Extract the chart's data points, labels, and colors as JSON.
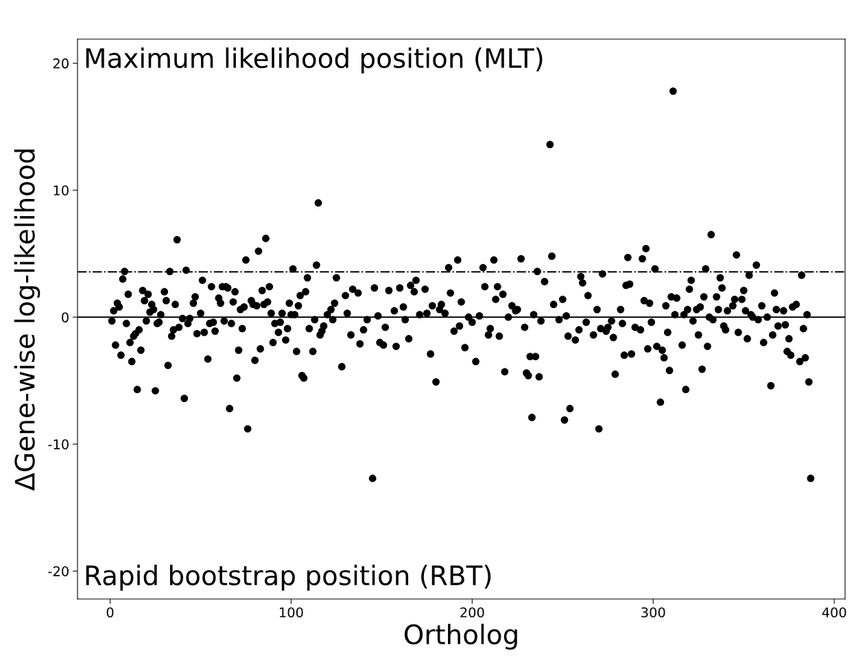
{
  "chart_data": {
    "type": "scatter",
    "xlabel": "Ortholog",
    "ylabel": "ΔGene-wise log-likelihood",
    "annotations": [
      "Maximum likelihood position (MLT)",
      "Rapid bootstrap position (RBT)"
    ],
    "xlim": [
      -18,
      406
    ],
    "ylim": [
      -22.2,
      21.9
    ],
    "xticks": [
      0,
      100,
      200,
      300,
      400
    ],
    "yticks": [
      -20,
      -10,
      0,
      10,
      20
    ],
    "grid": false,
    "legend": false,
    "marker": "circle",
    "ref_lines": [
      {
        "axis": "y",
        "value": 0,
        "line_style": "solid",
        "color": "#000000"
      },
      {
        "axis": "y",
        "value": 3.57,
        "line_style": "dashdot",
        "color": "#000000"
      }
    ],
    "series": [
      {
        "color": "#000000",
        "x": [
          1,
          2,
          3,
          4,
          5,
          6,
          7,
          8,
          9,
          10,
          11,
          12,
          13,
          14,
          15,
          16,
          17,
          18,
          19,
          20,
          21,
          22,
          23,
          24,
          25,
          26,
          27,
          28,
          30,
          31,
          32,
          33,
          34,
          35,
          36,
          37,
          38,
          40,
          41,
          42,
          43,
          44,
          46,
          47,
          48,
          50,
          51,
          52,
          54,
          55,
          56,
          57,
          58,
          60,
          61,
          62,
          63,
          64,
          65,
          66,
          67,
          68,
          69,
          70,
          71,
          72,
          73,
          74,
          75,
          76,
          78,
          79,
          80,
          81,
          82,
          83,
          84,
          85,
          86,
          87,
          88,
          89,
          90,
          91,
          93,
          94,
          95,
          97,
          98,
          99,
          100,
          101,
          102,
          103,
          104,
          105,
          106,
          107,
          108,
          109,
          110,
          112,
          113,
          114,
          115,
          116,
          117,
          118,
          120,
          122,
          123,
          124,
          125,
          128,
          130,
          131,
          133,
          134,
          137,
          138,
          140,
          142,
          145,
          146,
          148,
          149,
          151,
          152,
          154,
          157,
          158,
          160,
          162,
          163,
          165,
          166,
          168,
          169,
          171,
          174,
          175,
          177,
          178,
          180,
          182,
          183,
          185,
          187,
          188,
          190,
          192,
          193,
          194,
          196,
          198,
          200,
          202,
          204,
          206,
          207,
          209,
          210,
          212,
          213,
          214,
          215,
          217,
          218,
          220,
          222,
          224,
          225,
          227,
          229,
          230,
          231,
          232,
          233,
          234,
          235,
          236,
          237,
          238,
          240,
          243,
          244,
          245,
          248,
          250,
          251,
          252,
          253,
          254,
          257,
          259,
          260,
          261,
          263,
          264,
          267,
          269,
          270,
          271,
          272,
          274,
          275,
          277,
          278,
          279,
          282,
          283,
          284,
          285,
          286,
          287,
          288,
          290,
          293,
          294,
          295,
          296,
          297,
          298,
          299,
          301,
          302,
          304,
          305,
          306,
          307,
          308,
          309,
          310,
          312,
          313,
          311,
          316,
          317,
          318,
          319,
          320,
          321,
          322,
          324,
          325,
          326,
          327,
          328,
          329,
          330,
          331,
          332,
          333,
          335,
          336,
          337,
          338,
          339,
          340,
          341,
          344,
          345,
          346,
          347,
          349,
          350,
          351,
          352,
          353,
          354,
          355,
          357,
          358,
          360,
          361,
          365,
          363,
          366,
          367,
          368,
          369,
          372,
          373,
          374,
          375,
          376,
          377,
          379,
          381,
          382,
          383,
          384,
          385,
          386,
          387
        ],
        "values": [
          -0.3,
          0.5,
          -2.2,
          1.1,
          0.8,
          -3.0,
          3.0,
          3.6,
          -0.5,
          1.8,
          -2.0,
          -3.5,
          -1.5,
          -1.3,
          -5.7,
          -1.0,
          -2.6,
          2.1,
          1.3,
          -0.3,
          1.8,
          0.4,
          1.0,
          0.6,
          -5.8,
          -0.5,
          -0.4,
          0.2,
          2.0,
          1.3,
          -3.8,
          3.6,
          -1.5,
          -1.0,
          1.0,
          6.1,
          -0.8,
          -0.1,
          -6.4,
          3.7,
          -0.5,
          -0.1,
          1.1,
          1.6,
          -1.3,
          0.3,
          2.9,
          -1.2,
          -3.3,
          -0.5,
          2.4,
          -0.4,
          -1.1,
          1.5,
          1.1,
          2.4,
          -0.3,
          2.4,
          2.3,
          -7.2,
          -0.5,
          1.2,
          2.0,
          -4.8,
          -2.6,
          0.6,
          -0.9,
          0.8,
          4.5,
          -8.8,
          1.3,
          1.0,
          -3.4,
          0.9,
          5.2,
          -2.5,
          2.1,
          1.0,
          6.2,
          1.2,
          2.4,
          0.3,
          -2.0,
          -0.5,
          -1.2,
          -0.4,
          0.3,
          -1.8,
          -0.9,
          1.1,
          0.2,
          3.8,
          0.2,
          -2.7,
          0.9,
          1.7,
          -4.6,
          -4.8,
          2.0,
          3.1,
          -0.9,
          -2.7,
          -0.2,
          4.1,
          9.0,
          -1.4,
          -1.1,
          -0.7,
          0.2,
          0.6,
          -0.2,
          1.1,
          3.1,
          -3.9,
          1.7,
          0.3,
          -1.4,
          2.2,
          1.9,
          -2.1,
          -1.0,
          -0.2,
          -12.7,
          2.3,
          0.1,
          -2.0,
          -2.2,
          -0.8,
          2.1,
          0.5,
          -2.3,
          2.3,
          0.8,
          -0.2,
          -1.7,
          2.5,
          2.0,
          2.9,
          0.2,
          2.2,
          0.3,
          -2.9,
          0.9,
          -5.1,
          0.6,
          1.0,
          0.3,
          3.9,
          1.9,
          -1.1,
          4.5,
          -0.7,
          1.2,
          -2.4,
          0.0,
          -0.4,
          -3.5,
          0.1,
          3.9,
          2.4,
          -1.4,
          -0.9,
          4.5,
          1.4,
          2.4,
          -1.5,
          1.8,
          -4.3,
          0.0,
          0.9,
          0.5,
          0.6,
          4.6,
          -0.8,
          -4.4,
          -4.6,
          -3.1,
          -7.9,
          0.2,
          -3.1,
          3.6,
          -4.7,
          -0.3,
          2.8,
          13.6,
          4.8,
          1.0,
          -0.2,
          1.4,
          -8.1,
          0.1,
          -1.5,
          -7.2,
          -1.8,
          -1.0,
          3.2,
          2.7,
          -0.4,
          1.7,
          -1.4,
          0.6,
          -8.8,
          -0.9,
          3.4,
          -1.1,
          -0.8,
          -0.3,
          -1.6,
          -4.5,
          0.6,
          -0.5,
          -3.0,
          2.5,
          4.7,
          2.6,
          -2.9,
          -0.8,
          -1.0,
          4.6,
          1.3,
          5.4,
          -2.5,
          1.1,
          -0.4,
          3.8,
          -2.3,
          -6.7,
          -2.6,
          -3.2,
          0.9,
          -1.2,
          -4.2,
          1.6,
          0.2,
          1.5,
          17.8,
          -2.2,
          0.2,
          -5.7,
          0.6,
          2.2,
          2.9,
          -0.3,
          0.6,
          -1.4,
          0.8,
          -4.1,
          1.6,
          3.8,
          -2.3,
          0.0,
          6.5,
          -0.2,
          1.6,
          0.6,
          3.1,
          2.3,
          -0.7,
          -1.0,
          0.5,
          0.9,
          1.4,
          4.9,
          -1.2,
          1.4,
          2.1,
          0.5,
          -1.7,
          3.3,
          0.2,
          0.0,
          4.1,
          -0.2,
          0.9,
          -2.0,
          -5.4,
          0.0,
          -1.4,
          1.9,
          0.6,
          -0.7,
          0.5,
          -0.6,
          -2.7,
          -1.7,
          -3.0,
          0.8,
          1.0,
          -3.5,
          3.3,
          -0.9,
          -3.2,
          0.2,
          -5.1,
          -12.7
        ]
      }
    ]
  }
}
